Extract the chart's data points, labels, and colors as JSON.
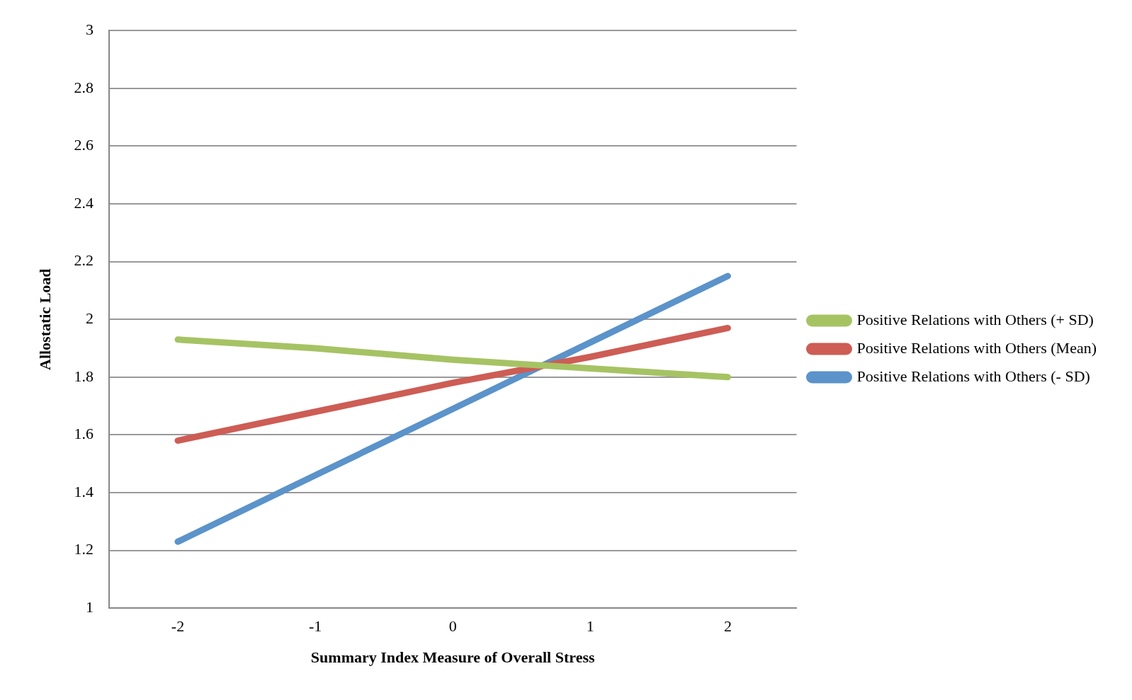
{
  "chart_data": {
    "type": "line",
    "xlabel": "Summary Index Measure of Overall Stress",
    "ylabel": "Allostatic Load",
    "categories": [
      "-2",
      "-1",
      "0",
      "1",
      "2"
    ],
    "series": [
      {
        "name": "Positive Relations with Others (+ SD)",
        "color": "#a6c364",
        "values": [
          1.93,
          1.9,
          1.86,
          1.83,
          1.8
        ]
      },
      {
        "name": "Positive Relations with Others (Mean)",
        "color": "#cd5d55",
        "values": [
          1.58,
          1.68,
          1.78,
          1.87,
          1.97
        ]
      },
      {
        "name": "Positive Relations with Others (- SD)",
        "color": "#5b93ca",
        "values": [
          1.23,
          1.46,
          1.69,
          1.92,
          2.15
        ]
      }
    ],
    "ylim": [
      1,
      3
    ],
    "yticks": [
      1,
      1.2,
      1.4,
      1.6,
      1.8,
      2,
      2.2,
      2.4,
      2.6,
      2.8,
      3
    ],
    "grid": "y",
    "legend": "right",
    "marker": "none",
    "line_style": "solid"
  }
}
